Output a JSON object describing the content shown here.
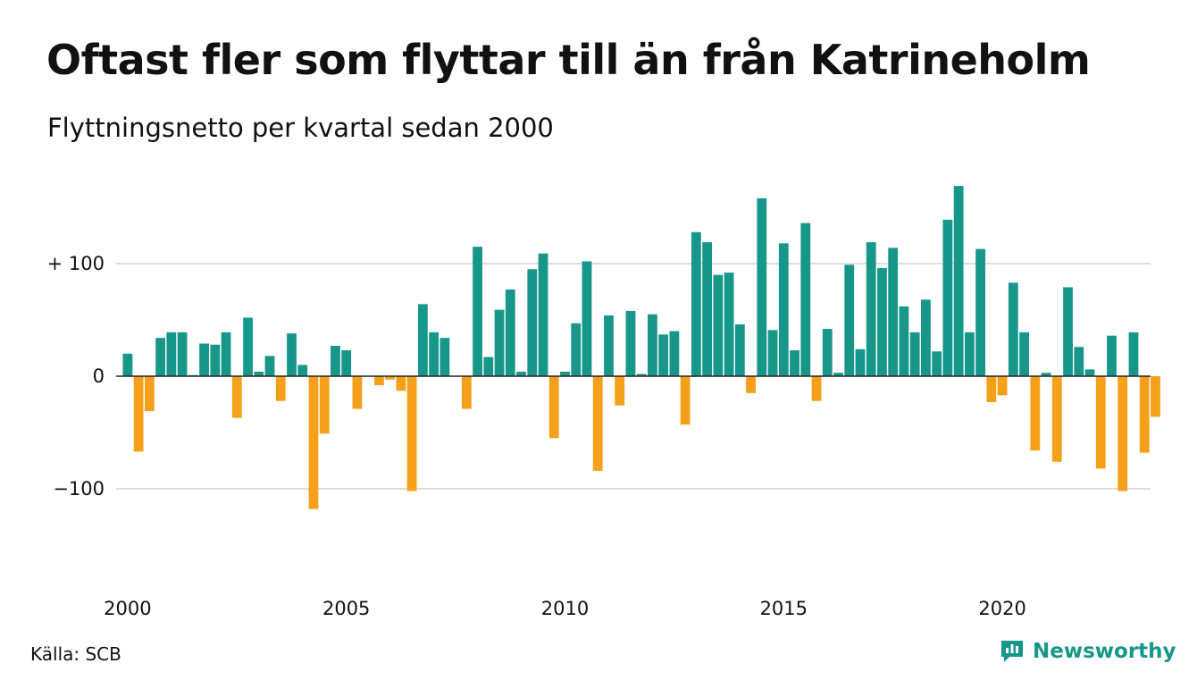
{
  "title": "Oftast fler som flyttar till än från Katrineholm",
  "subtitle": "Flyttningsnetto per kvartal sedan 2000",
  "source": "Källa: SCB",
  "brand": "Newsworthy",
  "colors": {
    "positive": "#17968a",
    "negative": "#f5a01a",
    "grid": "#dddddd",
    "baseline": "#222222"
  },
  "chart_data": {
    "type": "bar",
    "ylim": [
      -150,
      185
    ],
    "y_ticks": [
      {
        "value": 100,
        "label": "+ 100"
      },
      {
        "value": 0,
        "label": "0"
      },
      {
        "value": -100,
        "label": "−100"
      }
    ],
    "x_ticks": [
      "2000",
      "2005",
      "2010",
      "2015",
      "2020"
    ],
    "grid": true,
    "start_year": 2000,
    "values": [
      20,
      -67,
      -31,
      34,
      39,
      39,
      1,
      29,
      28,
      39,
      -37,
      52,
      4,
      18,
      -22,
      38,
      10,
      -118,
      -51,
      27,
      23,
      -29,
      0,
      -8,
      -3,
      -13,
      -102,
      64,
      39,
      34,
      0,
      -29,
      115,
      17,
      59,
      77,
      4,
      95,
      109,
      -55,
      4,
      47,
      102,
      -84,
      54,
      -26,
      58,
      2,
      55,
      37,
      40,
      -43,
      128,
      119,
      90,
      92,
      46,
      -15,
      158,
      41,
      118,
      23,
      136,
      -22,
      42,
      3,
      99,
      24,
      119,
      96,
      114,
      62,
      39,
      68,
      22,
      139,
      169,
      39,
      113,
      -23,
      -17,
      83,
      39,
      -66,
      3,
      -76,
      79,
      26,
      6,
      -82,
      36,
      -102,
      39,
      -68,
      -36
    ]
  }
}
